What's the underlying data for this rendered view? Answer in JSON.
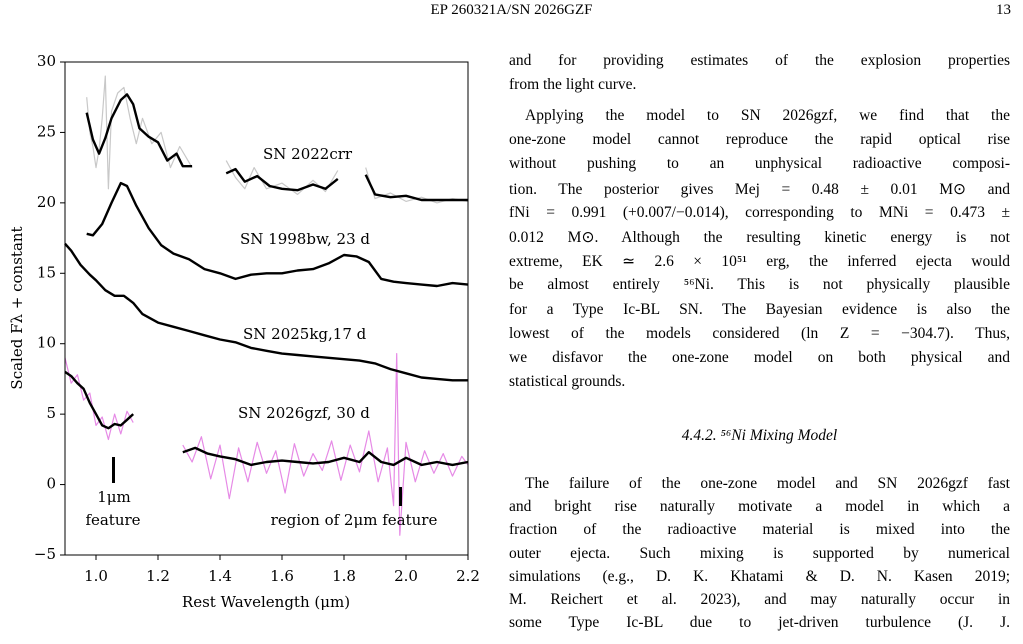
{
  "header": {
    "title": "EP 260321A/SN 2026GZF",
    "page": "13"
  },
  "chart_data": {
    "type": "line",
    "xlabel": "Rest Wavelength (μm)",
    "ylabel": "Scaled Fλ + constant",
    "xlim": [
      0.9,
      2.2
    ],
    "ylim": [
      -5,
      30
    ],
    "xticks": [
      {
        "value": 1.0,
        "label": "1.0"
      },
      1.2,
      1.4,
      1.6,
      1.8,
      {
        "value": 2.0,
        "label": "2.0"
      },
      2.2
    ],
    "yticks": [
      {
        "value": -5,
        "label": "−5"
      },
      0,
      5,
      10,
      15,
      20,
      25,
      30
    ],
    "annotations": [
      "1μm",
      "feature",
      "region of 2μm feature"
    ],
    "raw": [
      {
        "color": "#c8c8c8",
        "x": [
          0.97,
          0.98,
          0.99,
          1.0,
          1.01,
          1.02,
          1.03,
          1.04,
          1.05,
          1.07,
          1.09,
          1.11,
          1.13,
          1.15,
          1.18,
          1.21,
          1.24,
          1.27,
          1.31,
          1.36,
          1.42,
          1.45,
          1.48,
          1.51,
          1.55,
          1.6,
          1.65,
          1.7,
          1.74,
          1.78,
          1.82,
          1.87,
          1.9,
          1.95,
          2.0,
          2.05,
          2.1,
          2.15,
          2.2
        ],
        "values": [
          27.5,
          25.0,
          24.0,
          22.5,
          23.8,
          26.0,
          29.0,
          21.0,
          26.5,
          27.8,
          28.2,
          26.0,
          24.2,
          26.0,
          24.2,
          25.0,
          22.5,
          24.0,
          22.5,
          null,
          23.0,
          21.8,
          21.0,
          22.5,
          21.0,
          21.4,
          20.6,
          21.6,
          20.8,
          22.3,
          null,
          22.5,
          20.3,
          20.7,
          20.1,
          20.4,
          20.0,
          20.3,
          20.1
        ]
      },
      {
        "color": "#e68ae6",
        "x": [
          0.9,
          0.92,
          0.94,
          0.96,
          0.98,
          1.0,
          1.02,
          1.04,
          1.06,
          1.08,
          1.1,
          1.12,
          1.2,
          1.28,
          1.31,
          1.34,
          1.37,
          1.4,
          1.43,
          1.46,
          1.49,
          1.52,
          1.55,
          1.58,
          1.61,
          1.64,
          1.67,
          1.7,
          1.73,
          1.76,
          1.79,
          1.82,
          1.85,
          1.88,
          1.91,
          1.94,
          1.96,
          1.97,
          1.98,
          2.0,
          2.03,
          2.06,
          2.09,
          2.12,
          2.15,
          2.18,
          2.2
        ],
        "values": [
          9.0,
          7.2,
          7.8,
          6.0,
          6.5,
          4.2,
          4.8,
          3.2,
          5.0,
          3.6,
          5.2,
          4.4,
          null,
          2.8,
          1.6,
          3.4,
          0.4,
          2.8,
          -1.0,
          2.6,
          0.2,
          3.0,
          0.8,
          2.4,
          -0.6,
          2.9,
          0.6,
          2.2,
          1.0,
          3.1,
          0.3,
          2.8,
          0.9,
          3.8,
          0.2,
          2.6,
          -1.5,
          9.3,
          -3.6,
          3.0,
          0.2,
          2.4,
          0.8,
          2.2,
          0.6,
          2.0,
          1.4
        ]
      }
    ],
    "series": [
      {
        "name": "SN 2022crr",
        "color": "#000000",
        "x": [
          0.97,
          0.99,
          1.01,
          1.03,
          1.05,
          1.08,
          1.1,
          1.12,
          1.14,
          1.17,
          1.2,
          1.23,
          1.26,
          1.28,
          1.31,
          1.36,
          1.42,
          1.45,
          1.48,
          1.52,
          1.56,
          1.6,
          1.65,
          1.7,
          1.74,
          1.78,
          1.82,
          1.87,
          1.9,
          1.95,
          2.0,
          2.05,
          2.1,
          2.15,
          2.2
        ],
        "values": [
          26.4,
          24.5,
          23.5,
          24.6,
          26.0,
          27.3,
          27.7,
          27.0,
          25.3,
          24.7,
          24.3,
          23.0,
          23.5,
          22.6,
          22.6,
          null,
          22.1,
          22.4,
          21.5,
          21.9,
          21.2,
          21.0,
          20.9,
          21.3,
          21.0,
          21.7,
          null,
          22.0,
          20.6,
          20.4,
          20.5,
          20.2,
          20.2,
          20.2,
          20.2
        ]
      },
      {
        "name": "SN 1998bw, 23 d",
        "color": "#000000",
        "x": [
          0.97,
          0.99,
          1.02,
          1.05,
          1.08,
          1.1,
          1.13,
          1.17,
          1.21,
          1.25,
          1.3,
          1.35,
          1.4,
          1.45,
          1.5,
          1.55,
          1.6,
          1.65,
          1.7,
          1.75,
          1.8,
          1.84,
          1.88,
          1.92,
          1.96,
          2.0,
          2.05,
          2.1,
          2.15,
          2.2
        ],
        "values": [
          17.8,
          17.7,
          18.5,
          20.0,
          21.4,
          21.2,
          19.8,
          18.2,
          17.0,
          16.4,
          16.0,
          15.3,
          15.0,
          14.6,
          14.9,
          15.0,
          15.0,
          15.2,
          15.3,
          15.7,
          16.3,
          16.2,
          15.8,
          14.6,
          14.4,
          14.3,
          14.2,
          14.1,
          14.3,
          14.2
        ]
      },
      {
        "name": "SN 2025kg,17 d",
        "color": "#000000",
        "x": [
          0.9,
          0.92,
          0.95,
          0.98,
          1.0,
          1.03,
          1.06,
          1.09,
          1.12,
          1.15,
          1.2,
          1.25,
          1.3,
          1.35,
          1.4,
          1.45,
          1.5,
          1.55,
          1.6,
          1.65,
          1.7,
          1.75,
          1.8,
          1.85,
          1.9,
          1.95,
          2.0,
          2.05,
          2.1,
          2.15,
          2.2
        ],
        "values": [
          17.1,
          16.6,
          15.6,
          14.9,
          14.5,
          13.8,
          13.4,
          13.4,
          12.9,
          12.1,
          11.5,
          11.2,
          10.9,
          10.6,
          10.3,
          10.1,
          9.7,
          9.5,
          9.3,
          9.2,
          9.1,
          9.0,
          8.9,
          8.8,
          8.6,
          8.2,
          7.9,
          7.6,
          7.5,
          7.4,
          7.4
        ]
      },
      {
        "name": "SN 2026gzf, 30 d",
        "color": "#000000",
        "x": [
          0.9,
          0.92,
          0.94,
          0.96,
          0.98,
          1.0,
          1.02,
          1.04,
          1.06,
          1.08,
          1.1,
          1.12,
          1.2,
          1.28,
          1.32,
          1.36,
          1.4,
          1.45,
          1.5,
          1.55,
          1.6,
          1.65,
          1.7,
          1.75,
          1.8,
          1.85,
          1.88,
          1.92,
          1.96,
          2.0,
          2.05,
          2.1,
          2.15,
          2.2
        ],
        "values": [
          8.0,
          7.7,
          7.2,
          6.8,
          5.8,
          5.0,
          4.2,
          4.0,
          4.3,
          4.2,
          4.6,
          5.0,
          null,
          2.3,
          2.6,
          2.2,
          2.0,
          1.8,
          1.4,
          1.6,
          1.7,
          1.6,
          1.5,
          1.6,
          1.9,
          1.6,
          2.3,
          1.6,
          1.4,
          1.9,
          1.4,
          1.6,
          1.4,
          1.6
        ]
      }
    ]
  },
  "text": {
    "paragraphs": [
      [
        "and for providing estimates of the explosion properties",
        "from the light curve."
      ],
      [
        "Applying the model to SN 2026gzf, we find that the",
        "one-zone model cannot reproduce the rapid optical rise",
        "without pushing to an unphysical radioactive composi-",
        "tion.  The posterior gives Mej = 0.48 ± 0.01 M⊙ and",
        "fNi = 0.991 (+0.007/−0.014), corresponding to MNi = 0.473 ±",
        "0.012 M⊙. Although the resulting kinetic energy is not",
        "extreme, EK ≃ 2.6 × 10⁵¹ erg, the inferred ejecta would",
        "be almost entirely ⁵⁶Ni. This is not physically plausible",
        "for a Type Ic-BL SN. The Bayesian evidence is also the",
        "lowest of the models considered (ln Z = −304.7). Thus,",
        "we disfavor the one-zone model on both physical and",
        "statistical grounds."
      ],
      [
        "The failure of the one-zone model and SN 2026gzf fast",
        "and bright rise naturally motivate a model in which a",
        "fraction of the radioactive material is mixed into the",
        "outer ejecta.  Such mixing is supported by numerical",
        "simulations (e.g., D. K. Khatami & D. N. Kasen 2019;",
        "M. Reichert et al. 2023), and may naturally occur in",
        "some Type Ic-BL due to jet-driven turbulence (J. J."
      ]
    ],
    "heading": "4.4.2.  ⁵⁶Ni Mixing Model"
  }
}
